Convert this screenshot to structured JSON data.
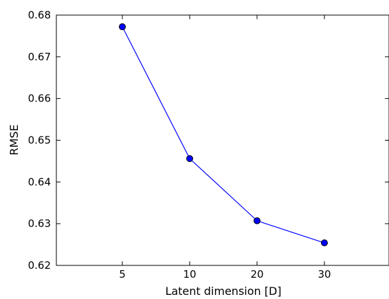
{
  "chart_data": {
    "type": "line",
    "title": "",
    "xlabel": "Latent dimension [D]",
    "ylabel": "RMSE",
    "categories": [
      "5",
      "10",
      "20",
      "30"
    ],
    "series": [
      {
        "values": [
          0.6772,
          0.6456,
          0.6307,
          0.6254
        ],
        "color": "#0000ff",
        "marker": "circle"
      }
    ],
    "ylim": [
      0.62,
      0.68
    ],
    "yticks": [
      "0.62",
      "0.63",
      "0.64",
      "0.65",
      "0.66",
      "0.67",
      "0.68"
    ],
    "grid": false,
    "legend": "none"
  }
}
